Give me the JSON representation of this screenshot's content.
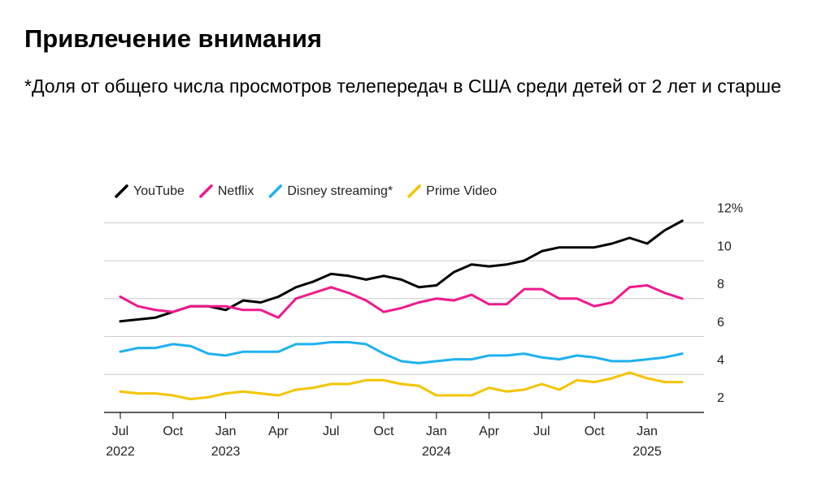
{
  "title": "Привлечение внимания",
  "subtitle": "*Доля от общего числа просмотров телепередач в США среди детей от 2 лет и старше",
  "chart_data": {
    "type": "line",
    "categories": [
      "Jul\n2022",
      null,
      null,
      "Oct",
      null,
      null,
      "Jan\n2023",
      null,
      null,
      "Apr",
      null,
      null,
      "Jul",
      null,
      null,
      "Oct",
      null,
      null,
      "Jan\n2024",
      null,
      null,
      "Apr",
      null,
      null,
      "Jul",
      null,
      null,
      "Oct",
      null,
      null,
      "Jan\n2025",
      null,
      null
    ],
    "series": [
      {
        "name": "YouTube",
        "color": "#000000",
        "values": [
          6.8,
          6.9,
          7.0,
          7.3,
          7.6,
          7.6,
          7.4,
          7.9,
          7.8,
          8.1,
          8.6,
          8.9,
          9.3,
          9.2,
          9.0,
          9.2,
          9.0,
          8.6,
          8.7,
          9.4,
          9.8,
          9.7,
          9.8,
          10.0,
          10.5,
          10.7,
          10.7,
          10.7,
          10.9,
          11.2,
          10.9,
          11.6,
          12.1
        ]
      },
      {
        "name": "Netflix",
        "color": "#f0198c",
        "values": [
          8.1,
          7.6,
          7.4,
          7.3,
          7.6,
          7.6,
          7.6,
          7.4,
          7.4,
          7.0,
          8.0,
          8.3,
          8.6,
          8.3,
          7.9,
          7.3,
          7.5,
          7.8,
          8.0,
          7.9,
          8.2,
          7.7,
          7.7,
          8.5,
          8.5,
          8.0,
          8.0,
          7.6,
          7.8,
          8.6,
          8.7,
          8.3,
          8.0
        ]
      },
      {
        "name": "Disney streaming*",
        "color": "#1fb1f0",
        "values": [
          5.2,
          5.4,
          5.4,
          5.6,
          5.5,
          5.1,
          5.0,
          5.2,
          5.2,
          5.2,
          5.6,
          5.6,
          5.7,
          5.7,
          5.6,
          5.1,
          4.7,
          4.6,
          4.7,
          4.8,
          4.8,
          5.0,
          5.0,
          5.1,
          4.9,
          4.8,
          5.0,
          4.9,
          4.7,
          4.7,
          4.8,
          4.9,
          5.1
        ]
      },
      {
        "name": "Prime Video",
        "color": "#f5c400",
        "values": [
          3.1,
          3.0,
          3.0,
          2.9,
          2.7,
          2.8,
          3.0,
          3.1,
          3.0,
          2.9,
          3.2,
          3.3,
          3.5,
          3.5,
          3.7,
          3.7,
          3.5,
          3.4,
          2.9,
          2.9,
          2.9,
          3.3,
          3.1,
          3.2,
          3.5,
          3.2,
          3.7,
          3.6,
          3.8,
          4.1,
          3.8,
          3.6,
          3.6
        ]
      }
    ],
    "ylim": [
      2,
      12.4
    ],
    "yticks": [
      2,
      4,
      6,
      8,
      10,
      {
        "value": 12,
        "label": "12%"
      }
    ],
    "grid": true
  }
}
